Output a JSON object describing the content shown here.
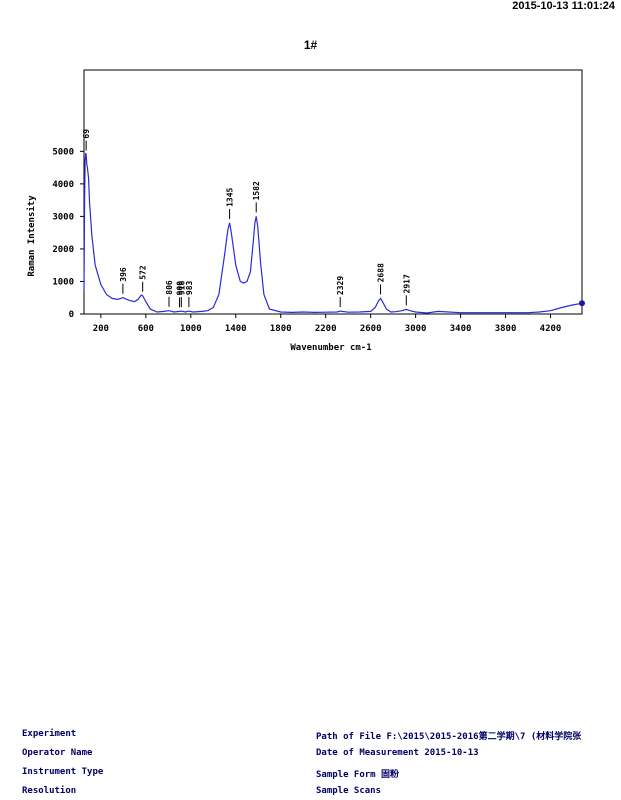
{
  "header": {
    "timestamp": "2015-10-13  11:01:24"
  },
  "chart_data": {
    "type": "line",
    "title": "1#",
    "xlabel": "Wavenumber cm-1",
    "ylabel": "Raman Intensity",
    "xlim": [
      50,
      4480
    ],
    "ylim": [
      0,
      7500
    ],
    "x_ticks": [
      200,
      600,
      1000,
      1400,
      1800,
      2200,
      2600,
      3000,
      3400,
      3800,
      4200
    ],
    "x_tick_labels": [
      "200",
      "600",
      "1000",
      "1400",
      "1800",
      "2200",
      "2600",
      "3000",
      "3400",
      "3800",
      "4200"
    ],
    "y_ticks": [
      0,
      1000,
      2000,
      3000,
      4000,
      5000
    ],
    "y_tick_labels": [
      "0",
      "1000",
      "2000",
      "3000",
      "4000",
      "5000"
    ],
    "line_color": "#2b2bd6",
    "series": [
      {
        "x": [
          50,
          55,
          60,
          65,
          69,
          75,
          80,
          90,
          100,
          120,
          150,
          200,
          250,
          300,
          350,
          396,
          450,
          500,
          530,
          560,
          572,
          600,
          640,
          700,
          760,
          806,
          850,
          900,
          916,
          950,
          983,
          1020,
          1100,
          1150,
          1200,
          1250,
          1300,
          1330,
          1345,
          1360,
          1400,
          1440,
          1470,
          1500,
          1530,
          1555,
          1570,
          1582,
          1595,
          1620,
          1650,
          1700,
          1800,
          1900,
          2000,
          2100,
          2200,
          2300,
          2329,
          2400,
          2500,
          2600,
          2640,
          2670,
          2688,
          2710,
          2740,
          2780,
          2820,
          2880,
          2917,
          2950,
          3000,
          3100,
          3200,
          3400,
          3600,
          3800,
          4000,
          4100,
          4200,
          4300,
          4400,
          4480
        ],
        "y": [
          700,
          3500,
          4700,
          4950,
          4900,
          4600,
          4500,
          4200,
          3400,
          2400,
          1500,
          900,
          600,
          480,
          450,
          500,
          420,
          380,
          450,
          580,
          560,
          380,
          150,
          60,
          80,
          100,
          60,
          80,
          90,
          60,
          90,
          60,
          80,
          100,
          200,
          600,
          1800,
          2600,
          2800,
          2500,
          1500,
          1000,
          950,
          1000,
          1300,
          2200,
          2800,
          3000,
          2700,
          1600,
          600,
          150,
          60,
          50,
          60,
          50,
          55,
          60,
          90,
          55,
          60,
          80,
          200,
          400,
          480,
          350,
          150,
          60,
          70,
          100,
          140,
          100,
          60,
          30,
          80,
          40,
          40,
          40,
          40,
          60,
          100,
          200,
          280,
          330
        ]
      }
    ],
    "peak_labels": [
      {
        "x": 69,
        "text": "69"
      },
      {
        "x": 396,
        "text": "396"
      },
      {
        "x": 572,
        "text": "572"
      },
      {
        "x": 806,
        "text": "806"
      },
      {
        "x": 900,
        "text": "900"
      },
      {
        "x": 916,
        "text": "916"
      },
      {
        "x": 983,
        "text": "983"
      },
      {
        "x": 1345,
        "text": "1345"
      },
      {
        "x": 1582,
        "text": "1582"
      },
      {
        "x": 2329,
        "text": "2329"
      },
      {
        "x": 2688,
        "text": "2688"
      },
      {
        "x": 2917,
        "text": "2917"
      }
    ]
  },
  "footer": {
    "experiment_label": "Experiment",
    "operator_label": "Operator Name",
    "instrument_label": "Instrument Type",
    "resolution_label": "Resolution",
    "path_label": "Path of File",
    "path_value": "F:\\2015\\2015-2016第二学期\\7 (材料学院张",
    "date_label": "Date of Measurement",
    "date_value": "2015-10-13",
    "form_label": "Sample Form",
    "form_value": "固粉",
    "scans_label": "Sample Scans"
  }
}
